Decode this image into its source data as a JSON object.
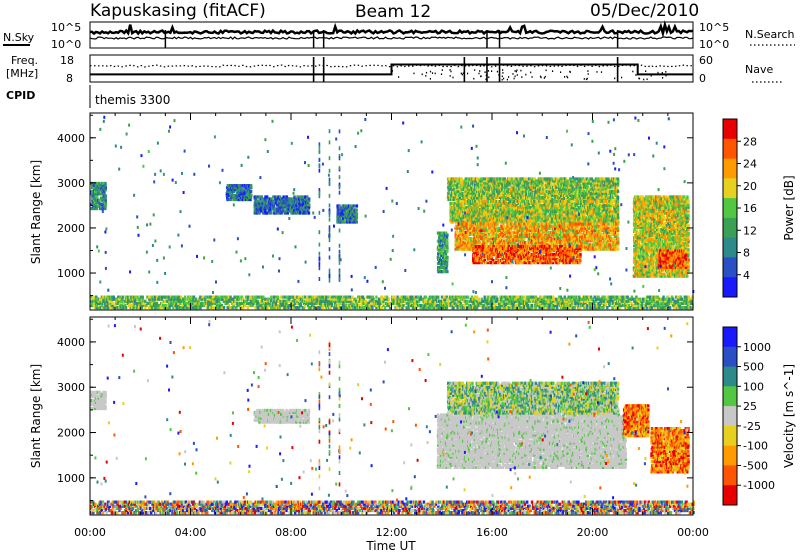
{
  "header": {
    "station": "Kapuskasing (fitACF)",
    "beam": "Beam 12",
    "date": "05/Dec/2010"
  },
  "noise_panel": {
    "left_label": "N.Sky",
    "right_label": "N.Search",
    "left_ticks": [
      "10^5",
      "10^0"
    ],
    "right_ticks": [
      "10^5",
      "10^0"
    ]
  },
  "freq_panel": {
    "left_label_line1": "Freq.",
    "left_label_line2": "[MHz]",
    "right_label": "Nave",
    "left_ticks": [
      "18",
      "8"
    ],
    "right_ticks": [
      "60",
      "0"
    ]
  },
  "cpid_panel": {
    "label": "CPID",
    "program": "themis 3300"
  },
  "x_axis": {
    "title": "Time UT",
    "ticks": [
      "00:00",
      "04:00",
      "08:00",
      "12:00",
      "16:00",
      "20:00",
      "00:00"
    ]
  },
  "colors": {
    "power_scale": [
      "#1a1aff",
      "#2a4fc4",
      "#2e8a8a",
      "#3aa055",
      "#52c842",
      "#e8d020",
      "#ff9a00",
      "#ff5500",
      "#e80000"
    ],
    "velocity_scale": [
      "#1a1aff",
      "#2a4fc4",
      "#2e8a8a",
      "#52c842",
      "#c8c8c8",
      "#e8d020",
      "#ff9a00",
      "#ff5500",
      "#e80000"
    ],
    "ground_scatter": "#c8c8c8"
  },
  "chart_data": [
    {
      "type": "heatmap",
      "title": "Power",
      "xlabel": "",
      "ylabel": "Slant Range [km]",
      "xlim": [
        0,
        24
      ],
      "ylim": [
        180,
        4550
      ],
      "y_ticks": [
        1000,
        2000,
        3000,
        4000
      ],
      "colorbar": {
        "label": "Power [dB]",
        "range": [
          0,
          32
        ],
        "ticks": [
          "4",
          "8",
          "12",
          "16",
          "20",
          "24",
          "28"
        ]
      },
      "x_units": "hours UT",
      "regions": [
        {
          "t": [
            0.0,
            0.6
          ],
          "range": [
            2400,
            3000
          ],
          "level": 0.3
        },
        {
          "t": [
            5.4,
            6.4
          ],
          "range": [
            2600,
            2950
          ],
          "level": 0.2
        },
        {
          "t": [
            6.5,
            8.7
          ],
          "range": [
            2300,
            2700
          ],
          "level": 0.2
        },
        {
          "t": [
            9.8,
            10.6
          ],
          "range": [
            2100,
            2500
          ],
          "level": 0.2
        },
        {
          "t": [
            13.8,
            14.2
          ],
          "range": [
            1000,
            1900
          ],
          "level": 0.35
        },
        {
          "t": [
            14.2,
            21.0
          ],
          "range": [
            2600,
            3100
          ],
          "level": 0.5
        },
        {
          "t": [
            14.3,
            21.0
          ],
          "range": [
            2100,
            2600
          ],
          "level": 0.55
        },
        {
          "t": [
            14.5,
            21.0
          ],
          "range": [
            1500,
            2100
          ],
          "level": 0.72
        },
        {
          "t": [
            15.2,
            19.5
          ],
          "range": [
            1200,
            1600
          ],
          "level": 0.86
        },
        {
          "t": [
            21.6,
            23.8
          ],
          "range": [
            900,
            2700
          ],
          "level": 0.6
        },
        {
          "t": [
            22.6,
            23.7
          ],
          "range": [
            1100,
            1500
          ],
          "level": 0.88
        },
        {
          "t": [
            0.0,
            24.0
          ],
          "range": [
            200,
            480
          ],
          "level": 0.45
        }
      ]
    },
    {
      "type": "heatmap",
      "title": "Velocity",
      "xlabel": "Time UT",
      "ylabel": "Slant Range [km]",
      "xlim": [
        0,
        24
      ],
      "ylim": [
        180,
        4550
      ],
      "y_ticks": [
        1000,
        2000,
        3000,
        4000
      ],
      "colorbar": {
        "label": "Velocity [m s^-1]",
        "ticks": [
          "1000",
          "500",
          "100",
          "25",
          "-25",
          "-100",
          "-500",
          "-1000"
        ]
      },
      "x_units": "hours UT",
      "regions": [
        {
          "t": [
            0.0,
            0.6
          ],
          "range": [
            2500,
            2900
          ],
          "kind": "ground"
        },
        {
          "t": [
            6.5,
            8.7
          ],
          "range": [
            2200,
            2500
          ],
          "kind": "ground"
        },
        {
          "t": [
            13.8,
            21.3
          ],
          "range": [
            1200,
            2400
          ],
          "kind": "ground"
        },
        {
          "t": [
            14.2,
            21.0
          ],
          "range": [
            2400,
            3100
          ],
          "kind": "positive"
        },
        {
          "t": [
            21.2,
            22.2
          ],
          "range": [
            1900,
            2600
          ],
          "kind": "negative"
        },
        {
          "t": [
            22.3,
            23.8
          ],
          "range": [
            1100,
            2100
          ],
          "kind": "negative"
        },
        {
          "t": [
            0.0,
            24.0
          ],
          "range": [
            200,
            480
          ],
          "kind": "mixed"
        }
      ]
    }
  ]
}
